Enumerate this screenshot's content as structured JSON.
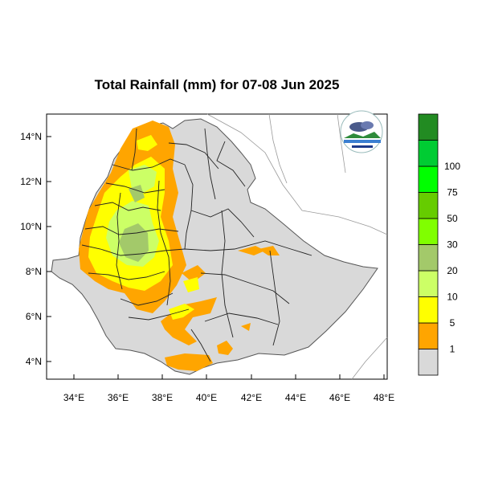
{
  "title": "Total Rainfall (mm) for 07-08 Jun 2025",
  "map": {
    "x_ticks": [
      "34°E",
      "36°E",
      "38°E",
      "40°E",
      "42°E",
      "44°E",
      "46°E",
      "48°E"
    ],
    "y_ticks": [
      "14°N",
      "12°N",
      "10°N",
      "8°N",
      "6°N",
      "4°N"
    ],
    "x_range_deg": [
      33.0,
      48.3
    ],
    "y_range_deg": [
      3.2,
      15.0
    ],
    "land_color": "#d9d9d9",
    "region": "Ethiopia"
  },
  "legend": {
    "labels": [
      "1",
      "5",
      "10",
      "20",
      "30",
      "50",
      "75",
      "100"
    ],
    "colors": [
      "#d9d9d9",
      "#ffa500",
      "#ffff00",
      "#ccff66",
      "#a3c96a",
      "#80ff00",
      "#66cc00",
      "#00ff00",
      "#00cc33",
      "#228b22"
    ]
  },
  "logo": {
    "name": "ethiopian-meteorology-institute-logo",
    "text": "Ethiopian Meteorology Institute"
  }
}
